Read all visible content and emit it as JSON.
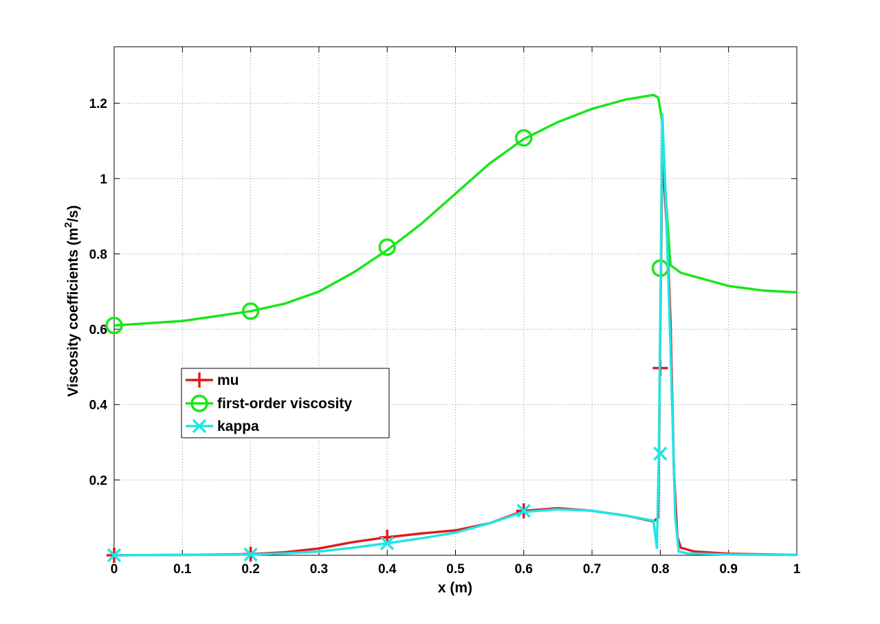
{
  "chart_data": {
    "type": "line",
    "title": "",
    "xlabel": "x (m)",
    "ylabel": "Viscosity coefficients (m",
    "ylabel_sup": "2",
    "ylabel_tail": "/s)",
    "xlim": [
      0,
      1
    ],
    "ylim": [
      0,
      1.35
    ],
    "x_ticks": [
      0,
      0.1,
      0.2,
      0.3,
      0.4,
      0.5,
      0.6,
      0.7,
      0.8,
      0.9,
      1
    ],
    "x_tick_labels": [
      "0",
      "0.1",
      "0.2",
      "0.3",
      "0.4",
      "0.5",
      "0.6",
      "0.7",
      "0.8",
      "0.9",
      "1"
    ],
    "y_ticks": [
      0.2,
      0.4,
      0.6,
      0.8,
      1.0,
      1.2
    ],
    "y_tick_labels": [
      "0.2",
      "0.4",
      "0.6",
      "0.8",
      "1",
      "1.2"
    ],
    "grid": true,
    "legend_position": "middle-left",
    "series": [
      {
        "name": "mu",
        "color": "#e31a1c",
        "marker": "plus",
        "x": [
          0,
          0.1,
          0.2,
          0.25,
          0.3,
          0.35,
          0.4,
          0.45,
          0.5,
          0.55,
          0.6,
          0.65,
          0.7,
          0.75,
          0.79,
          0.797,
          0.803,
          0.81,
          0.815,
          0.82,
          0.825,
          0.83,
          0.85,
          0.9,
          1.0
        ],
        "y": [
          0,
          0.001,
          0.003,
          0.008,
          0.018,
          0.035,
          0.048,
          0.058,
          0.066,
          0.085,
          0.118,
          0.125,
          0.118,
          0.105,
          0.09,
          0.1,
          1.08,
          0.85,
          0.62,
          0.22,
          0.05,
          0.02,
          0.01,
          0.004,
          0.001
        ],
        "marker_x": [
          0,
          0.2,
          0.4,
          0.6,
          0.8
        ],
        "marker_y": [
          0,
          0.003,
          0.048,
          0.118,
          0.497
        ]
      },
      {
        "name": "first-order viscosity",
        "color": "#19e619",
        "marker": "circle",
        "x": [
          0,
          0.1,
          0.2,
          0.25,
          0.3,
          0.35,
          0.4,
          0.45,
          0.5,
          0.55,
          0.6,
          0.65,
          0.7,
          0.75,
          0.79,
          0.797,
          0.803,
          0.808,
          0.815,
          0.83,
          0.85,
          0.9,
          0.95,
          1.0
        ],
        "y": [
          0.61,
          0.622,
          0.648,
          0.668,
          0.7,
          0.75,
          0.81,
          0.88,
          0.96,
          1.04,
          1.105,
          1.15,
          1.185,
          1.21,
          1.222,
          1.215,
          1.15,
          0.95,
          0.77,
          0.75,
          0.74,
          0.715,
          0.703,
          0.698
        ],
        "marker_x": [
          0,
          0.2,
          0.4,
          0.6,
          0.8
        ],
        "marker_y": [
          0.61,
          0.648,
          0.818,
          1.108,
          0.762
        ]
      },
      {
        "name": "kappa",
        "color": "#1ee6e6",
        "marker": "x",
        "x": [
          0,
          0.1,
          0.2,
          0.25,
          0.3,
          0.35,
          0.4,
          0.45,
          0.5,
          0.55,
          0.6,
          0.65,
          0.7,
          0.75,
          0.79,
          0.795,
          0.798,
          0.803,
          0.808,
          0.815,
          0.822,
          0.827,
          0.84,
          0.9,
          1.0
        ],
        "y": [
          0,
          0.001,
          0.002,
          0.005,
          0.01,
          0.02,
          0.032,
          0.045,
          0.06,
          0.085,
          0.115,
          0.122,
          0.118,
          0.105,
          0.092,
          0.02,
          0.27,
          1.17,
          0.95,
          0.55,
          0.1,
          0.01,
          0.005,
          0.002,
          0.001
        ],
        "marker_x": [
          0,
          0.2,
          0.4,
          0.6,
          0.8
        ],
        "marker_y": [
          0,
          0.002,
          0.032,
          0.118,
          0.27
        ]
      }
    ]
  }
}
